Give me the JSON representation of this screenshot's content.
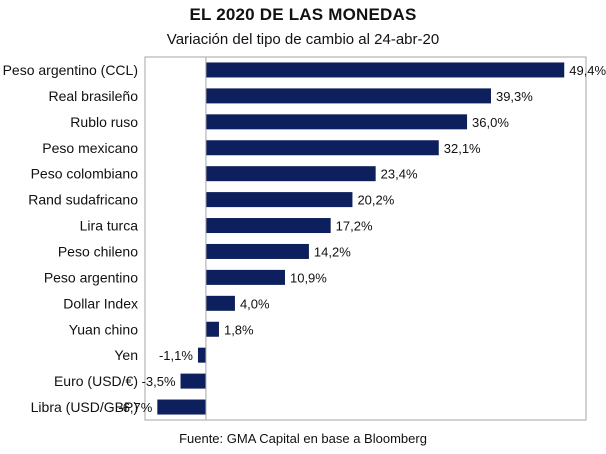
{
  "header": {
    "title": "EL 2020 DE LAS MONEDAS",
    "subtitle": "Variación del tipo de cambio al 24-abr-20"
  },
  "footer": {
    "source": "Fuente: GMA Capital en base a Bloomberg"
  },
  "chart_data": {
    "type": "bar",
    "orientation": "horizontal",
    "title": "EL 2020 DE LAS MONEDAS",
    "subtitle": "Variación del tipo de cambio al 24-abr-20",
    "categories": [
      "Peso argentino (CCL)",
      "Real brasileño",
      "Rublo ruso",
      "Peso mexicano",
      "Peso colombiano",
      "Rand sudafricano",
      "Lira turca",
      "Peso chileno",
      "Peso argentino",
      "Dollar Index",
      "Yuan chino",
      "Yen",
      "Euro (USD/€)",
      "Libra (USD/GBP)"
    ],
    "values": [
      49.4,
      39.3,
      36.0,
      32.1,
      23.4,
      20.2,
      17.2,
      14.2,
      10.9,
      4.0,
      1.8,
      -1.1,
      -3.5,
      -6.7
    ],
    "data_labels": [
      "49,4%",
      "39,3%",
      "36,0%",
      "32,1%",
      "23,4%",
      "20,2%",
      "17,2%",
      "14,2%",
      "10,9%",
      "4,0%",
      "1,8%",
      "-1,1%",
      "-3,5%",
      "-6,7%"
    ],
    "unit": "%",
    "xlim": [
      -8.4,
      52.4
    ],
    "grid": false,
    "legend": "none",
    "bar_color": "#0d1f5c",
    "frame_color": "#a6a6a6"
  }
}
